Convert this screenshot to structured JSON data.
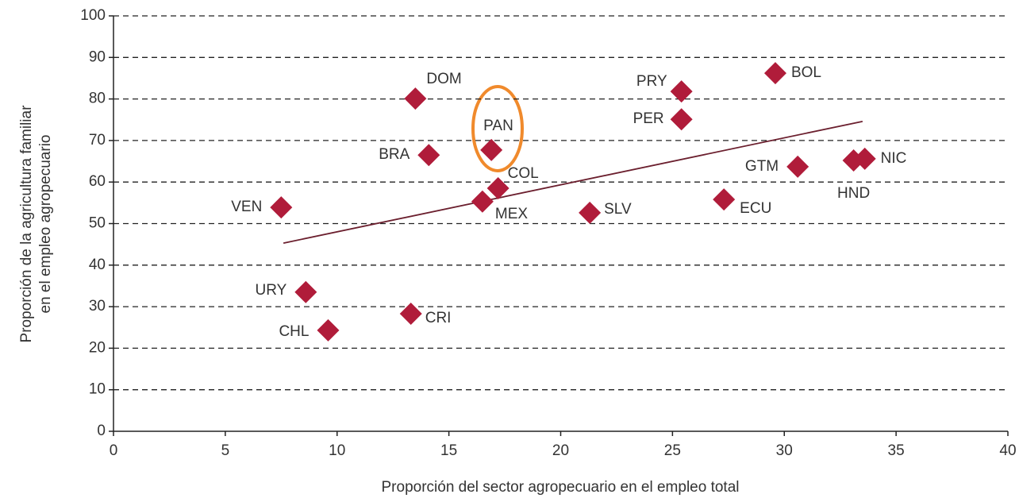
{
  "chart_data": {
    "type": "scatter",
    "x_label": "Proporción del sector agropecuario en el empleo total",
    "y_label": [
      "Proporción de la agricultura familiar",
      "en el empleo agropecuario"
    ],
    "xlim": [
      0,
      40
    ],
    "xticks": [
      0,
      5,
      10,
      15,
      20,
      25,
      30,
      35,
      40
    ],
    "ylim": [
      0,
      100
    ],
    "yticks": [
      0,
      10,
      20,
      30,
      40,
      50,
      60,
      70,
      80,
      90,
      100
    ],
    "grid": true,
    "series": [
      {
        "color": "#b01c3a",
        "labels": [
          "DOM",
          "BRA",
          "PAN",
          "COL",
          "MEX",
          "VEN",
          "URY",
          "CHL",
          "CRI",
          "SLV",
          "PRY",
          "PER",
          "BOL",
          "GTM",
          "ECU",
          "HND",
          "NIC"
        ],
        "x": [
          13.5,
          14.1,
          16.9,
          17.2,
          16.5,
          7.5,
          8.6,
          9.6,
          13.3,
          21.3,
          25.4,
          25.4,
          29.6,
          30.6,
          27.3,
          33.1,
          33.6
        ],
        "y": [
          80.1,
          66.5,
          67.7,
          58.5,
          55.3,
          53.9,
          33.5,
          24.3,
          28.3,
          52.6,
          81.8,
          75.1,
          86.2,
          63.7,
          55.8,
          65.2,
          65.6
        ]
      }
    ],
    "trendline": {
      "color": "#6b1f2e",
      "x": [
        7.6,
        33.5
      ],
      "y": [
        45.3,
        74.6
      ]
    }
  }
}
